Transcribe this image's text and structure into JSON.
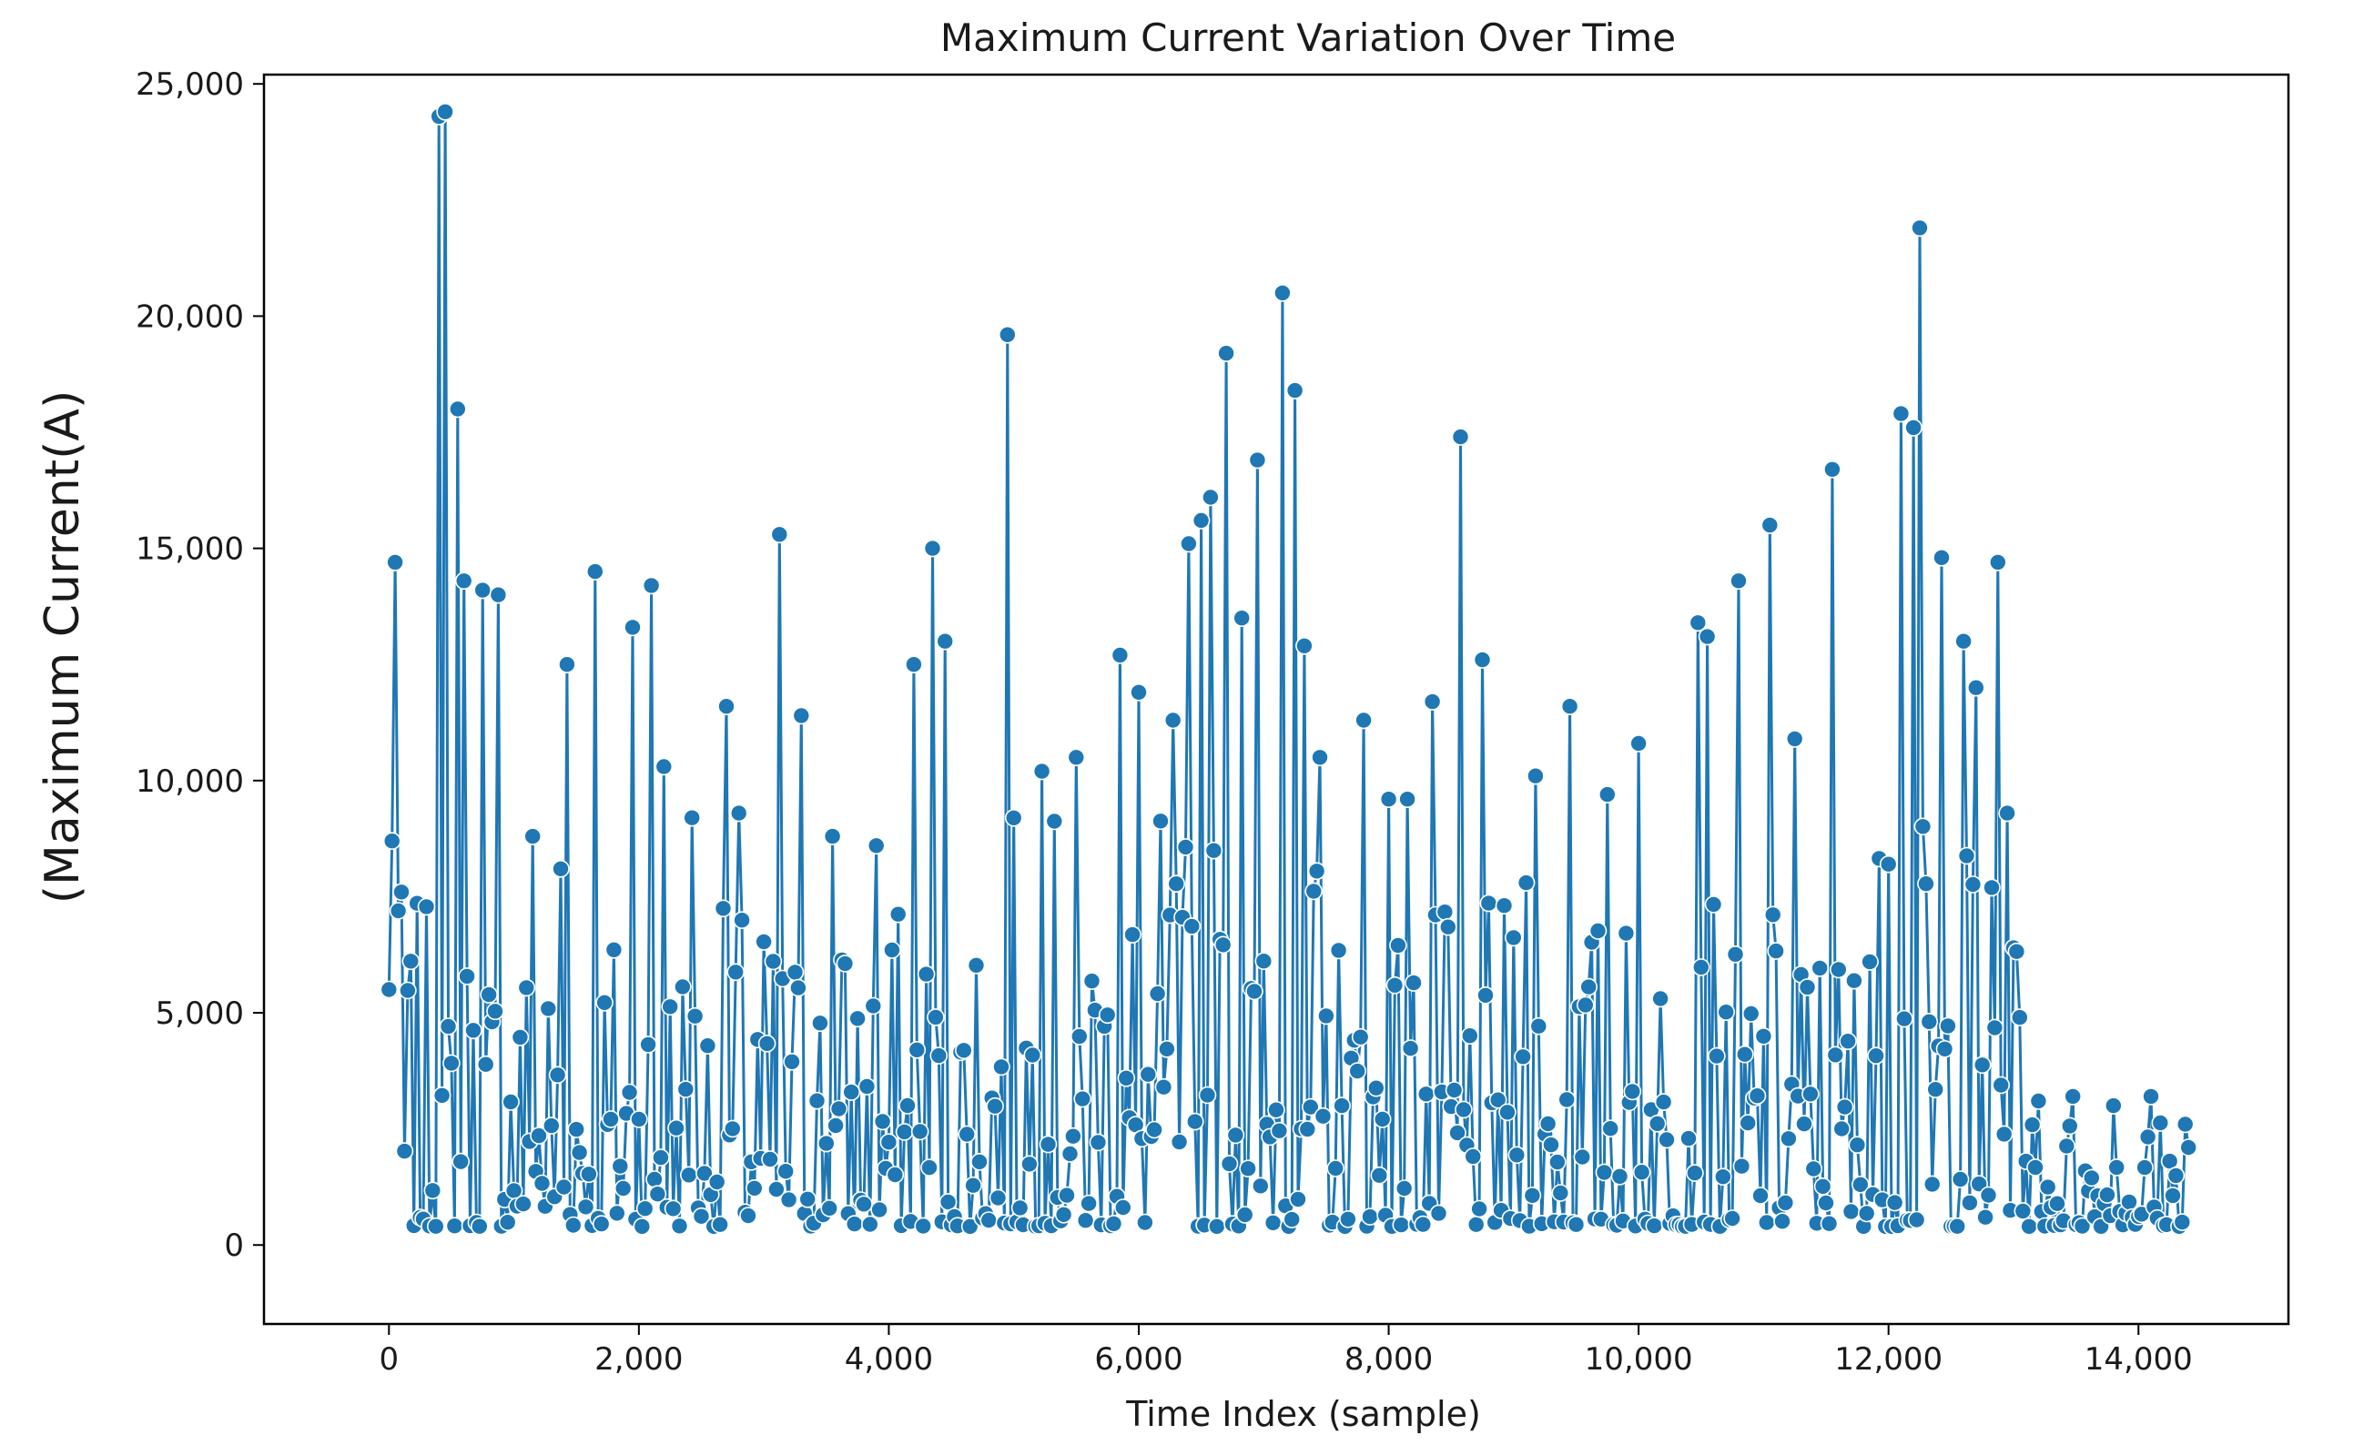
{
  "chart_data": {
    "type": "line",
    "title": "Maximum Current Variation Over Time",
    "xlabel": "Time Index (sample)",
    "ylabel": "(Maximum Current(A)",
    "xlim": [
      -1000,
      15200
    ],
    "ylim": [
      -1700,
      25200
    ],
    "xticks": [
      0,
      2000,
      4000,
      6000,
      8000,
      10000,
      12000,
      14000
    ],
    "xtick_labels": [
      "0",
      "2,000",
      "4,000",
      "6,000",
      "8,000",
      "10,000",
      "12,000",
      "14,000"
    ],
    "yticks": [
      0,
      5000,
      10000,
      15000,
      20000,
      25000
    ],
    "ytick_labels": [
      "0",
      "5,000",
      "10,000",
      "15,000",
      "20,000",
      "25,000"
    ],
    "grid": false,
    "marker": "circle",
    "color": "#1f77b4",
    "marker_edge_color": "#ffffff",
    "n_samples": 14400,
    "sample_step": 25,
    "series": [
      {
        "values_note_removed": true,
        "peaks": [
          [
            0,
            5500
          ],
          [
            20,
            8700
          ],
          [
            60,
            14700
          ],
          [
            100,
            7600
          ],
          [
            400,
            24300
          ],
          [
            440,
            24400
          ],
          [
            560,
            18000
          ],
          [
            600,
            14300
          ],
          [
            760,
            14100
          ],
          [
            880,
            14000
          ],
          [
            1160,
            8800
          ],
          [
            1380,
            8100
          ],
          [
            1420,
            12500
          ],
          [
            1660,
            14500
          ],
          [
            1960,
            13300
          ],
          [
            2100,
            14200
          ],
          [
            2200,
            10300
          ],
          [
            2420,
            9200
          ],
          [
            2700,
            11600
          ],
          [
            2800,
            9300
          ],
          [
            3120,
            15300
          ],
          [
            3300,
            11400
          ],
          [
            3540,
            8800
          ],
          [
            3900,
            8600
          ],
          [
            4200,
            12500
          ],
          [
            4340,
            15000
          ],
          [
            4440,
            13000
          ],
          [
            4960,
            19600
          ],
          [
            5220,
            10200
          ],
          [
            5500,
            10500
          ],
          [
            5860,
            12700
          ],
          [
            6000,
            11900
          ],
          [
            6280,
            11300
          ],
          [
            6400,
            15100
          ],
          [
            6500,
            15600
          ],
          [
            6580,
            16100
          ],
          [
            6700,
            19200
          ],
          [
            6820,
            13500
          ],
          [
            6960,
            16900
          ],
          [
            7160,
            20500
          ],
          [
            7240,
            18400
          ],
          [
            7320,
            12900
          ],
          [
            7460,
            10500
          ],
          [
            7800,
            11300
          ],
          [
            8000,
            9600
          ],
          [
            8160,
            9600
          ],
          [
            8360,
            11700
          ],
          [
            8580,
            17400
          ],
          [
            8760,
            12600
          ],
          [
            9100,
            7800
          ],
          [
            9180,
            10100
          ],
          [
            9440,
            11600
          ],
          [
            9760,
            9700
          ],
          [
            10000,
            10800
          ],
          [
            10480,
            13400
          ],
          [
            10560,
            13100
          ],
          [
            10800,
            14300
          ],
          [
            11040,
            15500
          ],
          [
            11260,
            10900
          ],
          [
            11560,
            16700
          ],
          [
            11860,
            6100
          ],
          [
            12000,
            8200
          ],
          [
            12100,
            17900
          ],
          [
            12200,
            17600
          ],
          [
            12240,
            21900
          ],
          [
            12420,
            14800
          ],
          [
            12600,
            13000
          ],
          [
            12700,
            12000
          ],
          [
            12880,
            14700
          ],
          [
            12960,
            9300
          ],
          [
            13000,
            6400
          ],
          [
            13040,
            4900
          ],
          [
            13200,
            3100
          ],
          [
            13480,
            3200
          ],
          [
            13800,
            3000
          ],
          [
            14100,
            3200
          ],
          [
            14380,
            2600
          ],
          [
            14400,
            2100
          ]
        ]
      }
    ]
  }
}
